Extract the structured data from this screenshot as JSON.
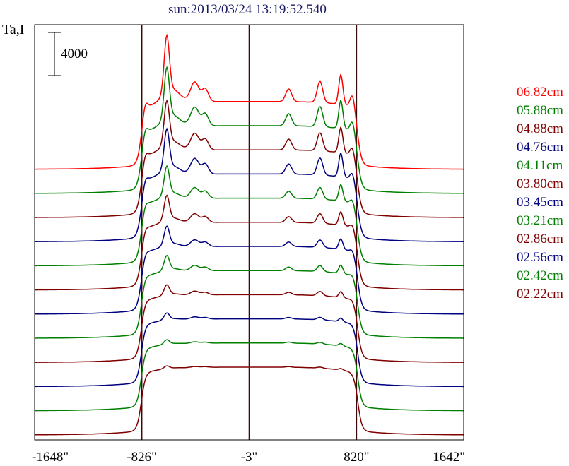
{
  "chart_data": {
    "type": "line",
    "title": "sun:2013/03/24 13:19:52.540",
    "ylabel": "Ta,I",
    "scale_bar": "4000",
    "x_ticks": [
      "-1648\"",
      "-826\"",
      "-3\"",
      "820\"",
      "1642\""
    ],
    "x_tick_values": [
      -1648,
      -826,
      -3,
      820,
      1642
    ],
    "xlim": [
      -1648,
      1642
    ],
    "reference_lines_x": [
      -826,
      -3,
      820
    ],
    "legend_placement": "right",
    "grid": false,
    "series": [
      {
        "name": "06.82cm",
        "color": "#ff0000",
        "offset": 11,
        "peak": 5200,
        "limb": 1300,
        "bumps": 1.0
      },
      {
        "name": "05.88cm",
        "color": "#008000",
        "offset": 10,
        "peak": 4600,
        "limb": 1100,
        "bumps": 0.95
      },
      {
        "name": "04.88cm",
        "color": "#800000",
        "offset": 9,
        "peak": 3900,
        "limb": 900,
        "bumps": 0.85
      },
      {
        "name": "04.76cm",
        "color": "#000080",
        "offset": 8,
        "peak": 3600,
        "limb": 800,
        "bumps": 0.8
      },
      {
        "name": "04.11cm",
        "color": "#008000",
        "offset": 7,
        "peak": 2600,
        "limb": 550,
        "bumps": 0.55
      },
      {
        "name": "03.80cm",
        "color": "#800000",
        "offset": 6,
        "peak": 2200,
        "limb": 450,
        "bumps": 0.45
      },
      {
        "name": "03.45cm",
        "color": "#000080",
        "offset": 5,
        "peak": 1700,
        "limb": 350,
        "bumps": 0.35
      },
      {
        "name": "03.21cm",
        "color": "#008000",
        "offset": 4,
        "peak": 1300,
        "limb": 250,
        "bumps": 0.28
      },
      {
        "name": "02.86cm",
        "color": "#800000",
        "offset": 3,
        "peak": 900,
        "limb": 150,
        "bumps": 0.2
      },
      {
        "name": "02.56cm",
        "color": "#000080",
        "offset": 2,
        "peak": 600,
        "limb": 80,
        "bumps": 0.12
      },
      {
        "name": "02.42cm",
        "color": "#008000",
        "offset": 1,
        "peak": 400,
        "limb": 40,
        "bumps": 0.08
      },
      {
        "name": "02.22cm",
        "color": "#800000",
        "offset": 0,
        "peak": 250,
        "limb": 0,
        "bumps": 0.05
      }
    ]
  }
}
